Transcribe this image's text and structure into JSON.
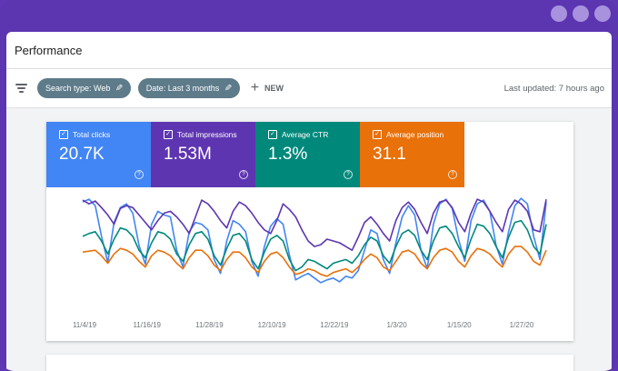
{
  "header": {
    "title": "Performance"
  },
  "toolbar": {
    "filters": [
      {
        "label": "Search type: Web"
      },
      {
        "label": "Date: Last 3 months"
      }
    ],
    "new_label": "NEW",
    "last_updated": "Last updated: 7 hours ago"
  },
  "metrics": [
    {
      "label": "Total clicks",
      "value": "20.7K",
      "color": "#4285f4"
    },
    {
      "label": "Total impressions",
      "value": "1.53M",
      "color": "#5e35b1"
    },
    {
      "label": "Average CTR",
      "value": "1.3%",
      "color": "#00897b"
    },
    {
      "label": "Average position",
      "value": "31.1",
      "color": "#e8710a"
    }
  ],
  "chart_data": {
    "type": "line",
    "x_tick_labels": [
      "11/4/19",
      "11/16/19",
      "11/28/19",
      "12/10/19",
      "12/22/19",
      "1/3/20",
      "1/15/20",
      "1/27/20"
    ],
    "series": [
      {
        "name": "Total clicks",
        "color": "#4285f4",
        "values": [
          0.92,
          0.95,
          0.88,
          0.55,
          0.27,
          0.7,
          0.86,
          0.9,
          0.8,
          0.45,
          0.25,
          0.68,
          0.82,
          0.78,
          0.76,
          0.4,
          0.22,
          0.6,
          0.7,
          0.68,
          0.62,
          0.3,
          0.15,
          0.5,
          0.72,
          0.68,
          0.6,
          0.28,
          0.12,
          0.44,
          0.66,
          0.74,
          0.68,
          0.35,
          0.08,
          0.12,
          0.15,
          0.1,
          0.05,
          0.08,
          0.1,
          0.06,
          0.12,
          0.1,
          0.18,
          0.4,
          0.62,
          0.58,
          0.3,
          0.15,
          0.48,
          0.76,
          0.88,
          0.78,
          0.4,
          0.2,
          0.68,
          0.9,
          0.95,
          0.85,
          0.52,
          0.28,
          0.72,
          0.9,
          0.94,
          0.82,
          0.45,
          0.25,
          0.6,
          0.88,
          0.96,
          0.9,
          0.55,
          0.3,
          0.92
        ]
      },
      {
        "name": "Total impressions",
        "color": "#5e35b1",
        "values": [
          0.94,
          0.9,
          0.93,
          0.86,
          0.78,
          0.68,
          0.85,
          0.88,
          0.86,
          0.78,
          0.7,
          0.62,
          0.72,
          0.8,
          0.82,
          0.76,
          0.68,
          0.58,
          0.76,
          0.94,
          0.9,
          0.82,
          0.72,
          0.64,
          0.82,
          0.92,
          0.88,
          0.8,
          0.7,
          0.62,
          0.58,
          0.72,
          0.9,
          0.84,
          0.76,
          0.62,
          0.5,
          0.44,
          0.46,
          0.52,
          0.5,
          0.48,
          0.44,
          0.4,
          0.54,
          0.7,
          0.76,
          0.68,
          0.58,
          0.5,
          0.72,
          0.86,
          0.92,
          0.84,
          0.7,
          0.58,
          0.8,
          0.92,
          0.94,
          0.86,
          0.7,
          0.6,
          0.8,
          0.95,
          0.92,
          0.82,
          0.7,
          0.6,
          0.84,
          0.94,
          0.9,
          0.82,
          0.62,
          0.6,
          0.95
        ]
      },
      {
        "name": "Average CTR",
        "color": "#00897b",
        "values": [
          0.55,
          0.58,
          0.6,
          0.5,
          0.36,
          0.52,
          0.64,
          0.62,
          0.55,
          0.4,
          0.32,
          0.48,
          0.6,
          0.58,
          0.52,
          0.36,
          0.28,
          0.46,
          0.58,
          0.6,
          0.52,
          0.34,
          0.24,
          0.42,
          0.56,
          0.58,
          0.5,
          0.3,
          0.2,
          0.38,
          0.52,
          0.56,
          0.5,
          0.3,
          0.18,
          0.22,
          0.3,
          0.28,
          0.24,
          0.2,
          0.26,
          0.28,
          0.3,
          0.26,
          0.34,
          0.46,
          0.54,
          0.5,
          0.34,
          0.26,
          0.44,
          0.58,
          0.62,
          0.56,
          0.4,
          0.3,
          0.5,
          0.64,
          0.66,
          0.58,
          0.44,
          0.32,
          0.52,
          0.68,
          0.66,
          0.58,
          0.44,
          0.32,
          0.54,
          0.7,
          0.72,
          0.62,
          0.44,
          0.36,
          0.68
        ]
      },
      {
        "name": "Average position",
        "color": "#e8710a",
        "values": [
          0.38,
          0.39,
          0.4,
          0.34,
          0.26,
          0.36,
          0.42,
          0.4,
          0.36,
          0.28,
          0.22,
          0.34,
          0.4,
          0.38,
          0.34,
          0.26,
          0.2,
          0.32,
          0.4,
          0.4,
          0.34,
          0.24,
          0.18,
          0.3,
          0.38,
          0.38,
          0.32,
          0.22,
          0.16,
          0.28,
          0.36,
          0.38,
          0.32,
          0.22,
          0.14,
          0.16,
          0.2,
          0.18,
          0.14,
          0.12,
          0.16,
          0.18,
          0.2,
          0.16,
          0.22,
          0.3,
          0.36,
          0.32,
          0.22,
          0.18,
          0.28,
          0.38,
          0.4,
          0.36,
          0.26,
          0.2,
          0.32,
          0.4,
          0.42,
          0.38,
          0.28,
          0.22,
          0.34,
          0.42,
          0.4,
          0.36,
          0.28,
          0.22,
          0.36,
          0.44,
          0.44,
          0.38,
          0.28,
          0.24,
          0.4
        ]
      }
    ]
  }
}
